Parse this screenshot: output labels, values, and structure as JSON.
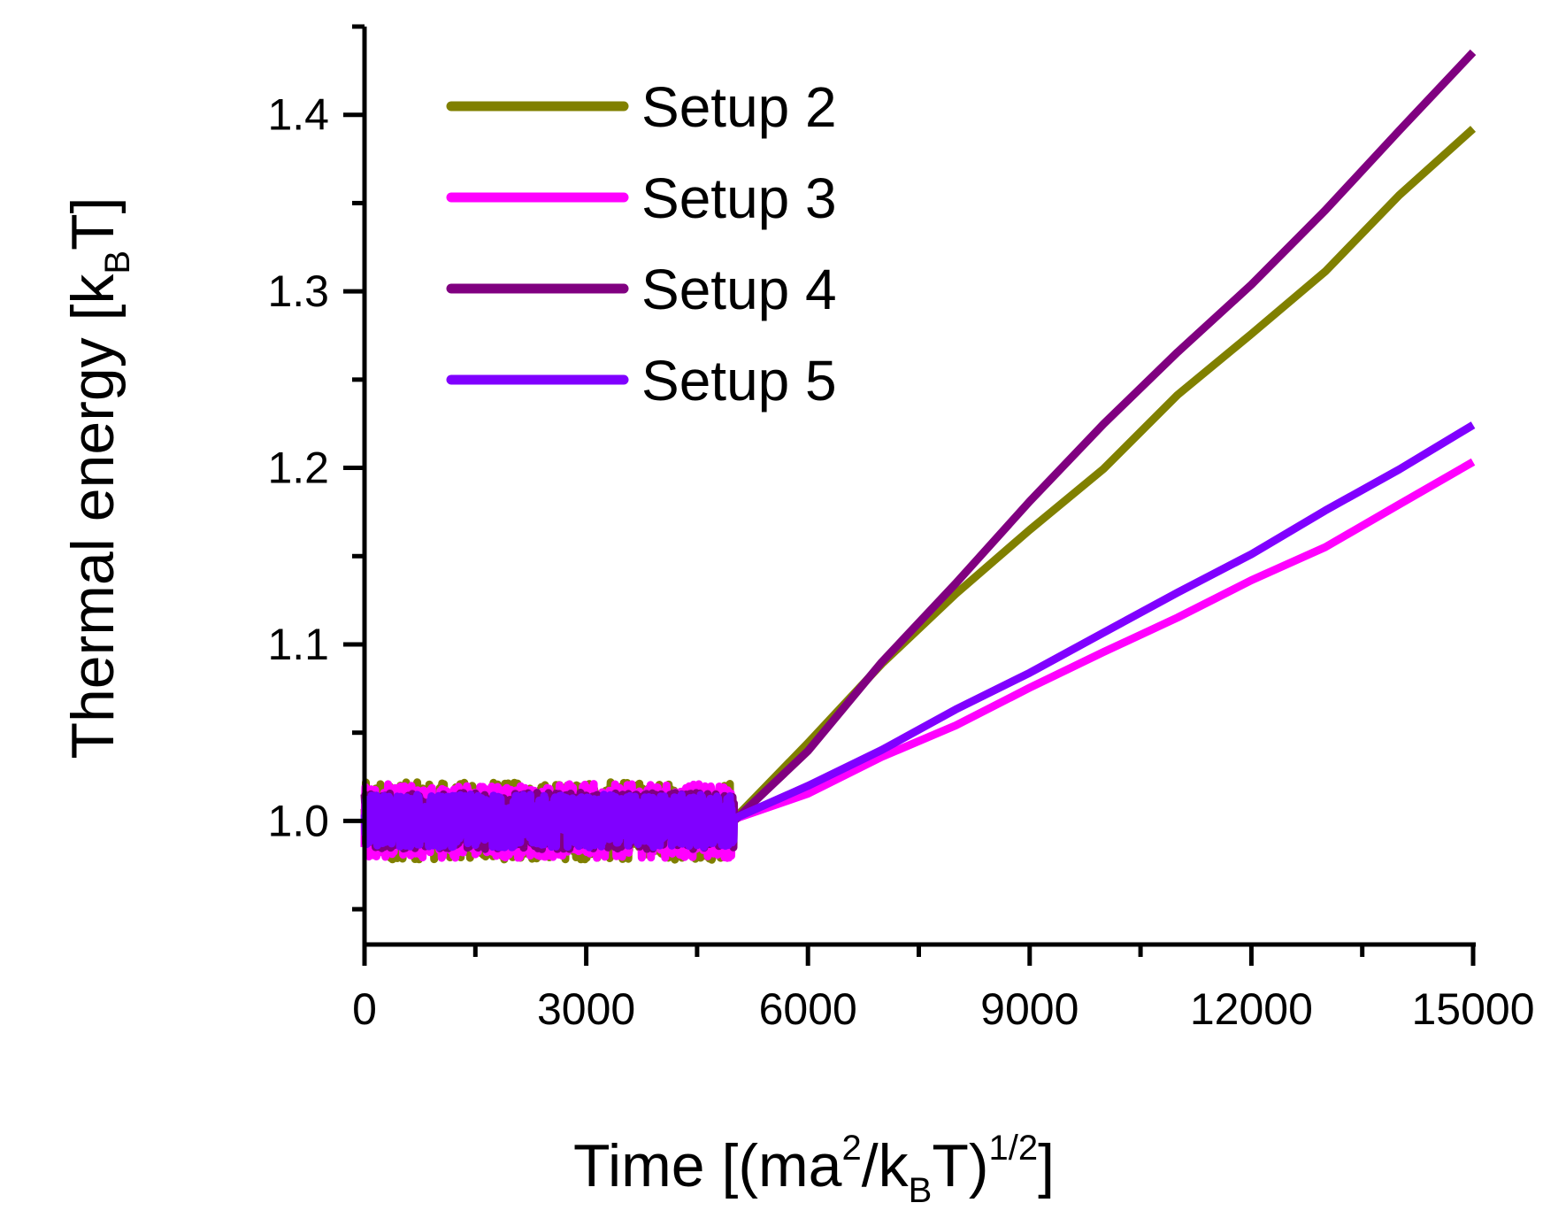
{
  "chart_data": {
    "type": "line",
    "title": "",
    "xlabel": {
      "main": "Time [(ma",
      "sup1": "2",
      "mid": "/k",
      "sub": "B",
      "after": "T)",
      "sup2": "1/2",
      "end": "]"
    },
    "ylabel": {
      "main": "Thermal energy [k",
      "sub": "B",
      "end": "T]"
    },
    "xlim": [
      0,
      15000
    ],
    "ylim": [
      0.93,
      1.45
    ],
    "xticks": [
      0,
      3000,
      6000,
      9000,
      12000,
      15000
    ],
    "xtick_labels": [
      "0",
      "3000",
      "6000",
      "9000",
      "12000",
      "15000"
    ],
    "xminor": [
      1500,
      4500,
      7500,
      10500,
      13500
    ],
    "yticks": [
      1.0,
      1.1,
      1.2,
      1.3,
      1.4
    ],
    "ytick_labels": [
      "1.0",
      "1.1",
      "1.2",
      "1.3",
      "1.4"
    ],
    "yminor": [
      0.95,
      1.05,
      1.15,
      1.25,
      1.35,
      1.45
    ],
    "noise_region": {
      "x_end": 5000,
      "mean": 1.0,
      "amplitude": 0.02
    },
    "legend_position": "top-left",
    "series": [
      {
        "name": "Setup 2",
        "color": "#808000",
        "noise_amp": 0.022,
        "points": [
          [
            5000,
            1.0
          ],
          [
            6000,
            1.045
          ],
          [
            7000,
            1.09
          ],
          [
            8000,
            1.13
          ],
          [
            9000,
            1.165
          ],
          [
            10000,
            1.2
          ],
          [
            11000,
            1.24
          ],
          [
            12000,
            1.275
          ],
          [
            13000,
            1.31
          ],
          [
            14000,
            1.355
          ],
          [
            15000,
            1.393
          ]
        ]
      },
      {
        "name": "Setup 3",
        "color": "#ff00ff",
        "noise_amp": 0.021,
        "points": [
          [
            5000,
            1.0
          ],
          [
            6000,
            1.015
          ],
          [
            7000,
            1.035
          ],
          [
            8000,
            1.055
          ],
          [
            9000,
            1.075
          ],
          [
            10000,
            1.095
          ],
          [
            11000,
            1.115
          ],
          [
            12000,
            1.135
          ],
          [
            13000,
            1.155
          ],
          [
            14000,
            1.178
          ],
          [
            15000,
            1.204
          ]
        ]
      },
      {
        "name": "Setup 4",
        "color": "#800080",
        "noise_amp": 0.016,
        "points": [
          [
            5000,
            1.0
          ],
          [
            6000,
            1.04
          ],
          [
            7000,
            1.09
          ],
          [
            8000,
            1.135
          ],
          [
            9000,
            1.18
          ],
          [
            10000,
            1.225
          ],
          [
            11000,
            1.265
          ],
          [
            12000,
            1.305
          ],
          [
            13000,
            1.345
          ],
          [
            14000,
            1.39
          ],
          [
            15000,
            1.435
          ]
        ]
      },
      {
        "name": "Setup 5",
        "color": "#8000ff",
        "noise_amp": 0.015,
        "points": [
          [
            5000,
            1.0
          ],
          [
            6000,
            1.02
          ],
          [
            7000,
            1.04
          ],
          [
            8000,
            1.062
          ],
          [
            9000,
            1.085
          ],
          [
            10000,
            1.107
          ],
          [
            11000,
            1.13
          ],
          [
            12000,
            1.152
          ],
          [
            13000,
            1.175
          ],
          [
            14000,
            1.2
          ],
          [
            15000,
            1.225
          ]
        ]
      }
    ]
  }
}
